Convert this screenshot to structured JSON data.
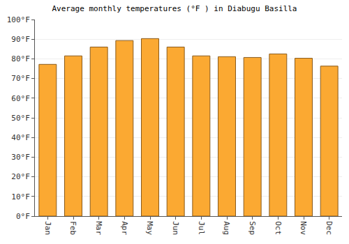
{
  "chart_data": {
    "type": "bar",
    "title": "Average monthly temperatures (°F ) in Diabugu Basilla",
    "categories": [
      "Jan",
      "Feb",
      "Mar",
      "Apr",
      "May",
      "Jun",
      "Jul",
      "Aug",
      "Sep",
      "Oct",
      "Nov",
      "Dec"
    ],
    "values": [
      77.2,
      81.5,
      86,
      89.3,
      90.3,
      86,
      81.5,
      81.1,
      80.7,
      82.5,
      80.3,
      76.3
    ],
    "color": "#fba932",
    "ylim": [
      0,
      100
    ],
    "yticks": [
      {
        "value": 0,
        "label": "0°F"
      },
      {
        "value": 10,
        "label": "10°F"
      },
      {
        "value": 20,
        "label": "20°F"
      },
      {
        "value": 30,
        "label": "30°F"
      },
      {
        "value": 40,
        "label": "40°F"
      },
      {
        "value": 50,
        "label": "50°F"
      },
      {
        "value": 60,
        "label": "60°F"
      },
      {
        "value": 70,
        "label": "70°F"
      },
      {
        "value": 80,
        "label": "80°F"
      },
      {
        "value": 90,
        "label": "90°F"
      },
      {
        "value": 100,
        "label": "100°F"
      }
    ],
    "grid": true
  }
}
